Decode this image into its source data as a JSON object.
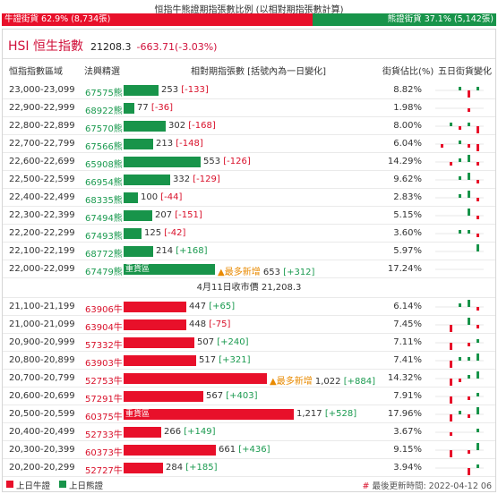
{
  "ratio": {
    "title": "恒指牛熊證期指張數比例 (以相對期指張數計算)",
    "bull_label": "牛證街貨 62.9% (8,734張)",
    "bear_label": "熊證街貨 37.1% (5,142張)",
    "bull_share": 0.629
  },
  "index": {
    "name": "HSI 恒生指數",
    "value": "21208.3",
    "change": "-663.71(-3.03%)"
  },
  "columns": {
    "range": "恒指指數區域",
    "code": "法興精選",
    "contracts": "相對期指張數 [括號內為一日變化]",
    "outstanding": "街貨佔比(%)",
    "five_day": "五日街貨變化"
  },
  "max_contracts": 1217,
  "bear_rows": [
    {
      "range": "23,000-23,099",
      "code": "67575熊",
      "contracts": 253,
      "value": "253",
      "change": "[-133]",
      "dir": "neg",
      "pct": "8.82%",
      "spark": [
        0,
        0,
        1,
        -2,
        1
      ]
    },
    {
      "range": "22,900-22,999",
      "code": "68922熊",
      "contracts": 77,
      "value": "77",
      "change": "[-36]",
      "dir": "neg",
      "pct": "1.98%",
      "spark": [
        0,
        0,
        0,
        -1,
        0
      ]
    },
    {
      "range": "22,800-22,899",
      "code": "67570熊",
      "contracts": 302,
      "value": "302",
      "change": "[-168]",
      "dir": "neg",
      "pct": "8.00%",
      "spark": [
        0,
        1,
        -1,
        1,
        -2
      ]
    },
    {
      "range": "22,700-22,799",
      "code": "67566熊",
      "contracts": 213,
      "value": "213",
      "change": "[-148]",
      "dir": "neg",
      "pct": "6.04%",
      "spark": [
        -1,
        0,
        1,
        -1,
        -2
      ]
    },
    {
      "range": "22,600-22,699",
      "code": "65908熊",
      "contracts": 553,
      "value": "553",
      "change": "[-126]",
      "dir": "neg",
      "pct": "14.29%",
      "spark": [
        0,
        -1,
        1,
        2,
        -1
      ]
    },
    {
      "range": "22,500-22,599",
      "code": "66954熊",
      "contracts": 332,
      "value": "332",
      "change": "[-129]",
      "dir": "neg",
      "pct": "9.62%",
      "spark": [
        0,
        0,
        1,
        2,
        -1
      ]
    },
    {
      "range": "22,400-22,499",
      "code": "68335熊",
      "contracts": 100,
      "value": "100",
      "change": "[-44]",
      "dir": "neg",
      "pct": "2.83%",
      "spark": [
        0,
        0,
        1,
        2,
        -1
      ]
    },
    {
      "range": "22,300-22,399",
      "code": "67494熊",
      "contracts": 207,
      "value": "207",
      "change": "[-151]",
      "dir": "neg",
      "pct": "5.15%",
      "spark": [
        0,
        0,
        0,
        2,
        -1
      ]
    },
    {
      "range": "22,200-22,299",
      "code": "67493熊",
      "contracts": 125,
      "value": "125",
      "change": "[-42]",
      "dir": "neg",
      "pct": "3.60%",
      "spark": [
        0,
        0,
        1,
        1,
        -1
      ]
    },
    {
      "range": "22,100-22,199",
      "code": "68772熊",
      "contracts": 214,
      "value": "214",
      "change": "[+168]",
      "dir": "pos",
      "pct": "5.97%",
      "spark": [
        0,
        0,
        0,
        0,
        2
      ]
    },
    {
      "range": "22,000-22,099",
      "code": "67479熊",
      "contracts": 653,
      "value": "653",
      "change": "[+312]",
      "dir": "pos",
      "pct": "17.24%",
      "heavy": "重貨區",
      "newest": "▲最多新增",
      "spark": [
        0,
        0,
        0,
        0,
        0
      ]
    }
  ],
  "close_line": "4月11日收市價 21,208.3",
  "bull_rows": [
    {
      "range": "21,100-21,199",
      "code": "63906牛",
      "contracts": 447,
      "value": "447",
      "change": "[+65]",
      "dir": "pos",
      "pct": "6.14%",
      "spark": [
        0,
        0,
        1,
        2,
        -1
      ]
    },
    {
      "range": "21,000-21,099",
      "code": "63904牛",
      "contracts": 448,
      "value": "448",
      "change": "[-75]",
      "dir": "neg",
      "pct": "7.45%",
      "spark": [
        0,
        -2,
        0,
        2,
        -1
      ]
    },
    {
      "range": "20,900-20,999",
      "code": "57332牛",
      "contracts": 507,
      "value": "507",
      "change": "[+240]",
      "dir": "pos",
      "pct": "7.11%",
      "spark": [
        0,
        -2,
        0,
        -1,
        1
      ]
    },
    {
      "range": "20,800-20,899",
      "code": "63903牛",
      "contracts": 517,
      "value": "517",
      "change": "[+321]",
      "dir": "pos",
      "pct": "7.41%",
      "spark": [
        0,
        -2,
        1,
        1,
        2
      ]
    },
    {
      "range": "20,700-20,799",
      "code": "52753牛",
      "contracts": 1022,
      "value": "1,022",
      "change": "[+884]",
      "dir": "pos",
      "pct": "14.32%",
      "newest": "▲最多新增",
      "spark": [
        0,
        -2,
        -1,
        1,
        2
      ]
    },
    {
      "range": "20,600-20,699",
      "code": "57291牛",
      "contracts": 567,
      "value": "567",
      "change": "[+403]",
      "dir": "pos",
      "pct": "7.91%",
      "spark": [
        0,
        -2,
        0,
        -1,
        1
      ]
    },
    {
      "range": "20,500-20,599",
      "code": "60375牛",
      "contracts": 1217,
      "value": "1,217",
      "change": "[+528]",
      "dir": "pos",
      "pct": "17.96%",
      "heavy": "重貨區",
      "spark": [
        0,
        -2,
        1,
        -1,
        2
      ]
    },
    {
      "range": "20,400-20,499",
      "code": "52733牛",
      "contracts": 266,
      "value": "266",
      "change": "[+149]",
      "dir": "pos",
      "pct": "3.67%",
      "spark": [
        0,
        -1,
        0,
        0,
        1
      ]
    },
    {
      "range": "20,300-20,399",
      "code": "60373牛",
      "contracts": 661,
      "value": "661",
      "change": "[+436]",
      "dir": "pos",
      "pct": "9.15%",
      "spark": [
        0,
        -2,
        0,
        -1,
        2
      ]
    },
    {
      "range": "20,200-20,299",
      "code": "52727牛",
      "contracts": 284,
      "value": "284",
      "change": "[+185]",
      "dir": "pos",
      "pct": "3.94%",
      "spark": [
        0,
        0,
        0,
        -2,
        1
      ]
    }
  ],
  "legend": {
    "bull": "上日牛證",
    "bear": "上日熊證",
    "bull_color": "#e8102a",
    "bear_color": "#18944a"
  },
  "updated": {
    "hash": "#",
    "text": "最後更新時間: 2022-04-12 06"
  }
}
